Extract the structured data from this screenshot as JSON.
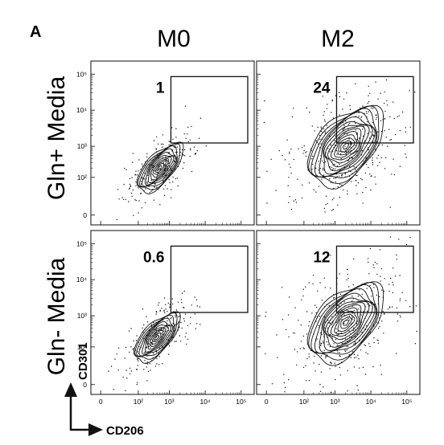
{
  "figure": {
    "panel_letter": "A",
    "column_titles": [
      "M0",
      "M2"
    ],
    "row_titles": [
      "Gln+ Media",
      "Gln- Media"
    ],
    "x_axis_name": "CD206",
    "y_axis_name": "CD301"
  },
  "chart_data": {
    "type": "scatter",
    "subtype": "flow-cytometry-contour-grid",
    "x_axis": {
      "label": "CD206",
      "scale": "biexponential",
      "ticks": [
        "0",
        "10²",
        "10³",
        "10⁴",
        "10⁵"
      ]
    },
    "y_axis": {
      "label": "CD301",
      "scale": "biexponential",
      "ticks": [
        "0",
        "10²",
        "10³",
        "10⁴",
        "10⁵"
      ]
    },
    "gate": {
      "shape": "rectangle",
      "x_range": [
        "~1.5×10³",
        "10⁵+"
      ],
      "y_range": [
        "~1.5×10³",
        "10⁵"
      ]
    },
    "panels": [
      {
        "row": "Gln+ Media",
        "column": "M0",
        "gate_percent": "1",
        "population": {
          "center_x": 500,
          "center_y": 200,
          "spread": "narrow"
        }
      },
      {
        "row": "Gln+ Media",
        "column": "M2",
        "gate_percent": "24",
        "population": {
          "center_x": 2000,
          "center_y": 1000,
          "spread": "wide"
        }
      },
      {
        "row": "Gln- Media",
        "column": "M0",
        "gate_percent": "0.6",
        "population": {
          "center_x": 400,
          "center_y": 200,
          "spread": "narrow"
        }
      },
      {
        "row": "Gln- Media",
        "column": "M2",
        "gate_percent": "12",
        "population": {
          "center_x": 2000,
          "center_y": 600,
          "spread": "wide"
        }
      }
    ]
  }
}
